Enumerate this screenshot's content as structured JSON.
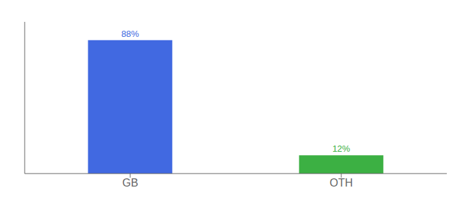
{
  "chart_data": {
    "type": "bar",
    "categories": [
      "GB",
      "OTH"
    ],
    "values": [
      88,
      12
    ],
    "value_labels": [
      "88%",
      "12%"
    ],
    "colors": [
      "#4169e1",
      "#3cb043"
    ],
    "ylim": [
      0,
      100
    ],
    "grid": false,
    "data_labels": true,
    "tick_labels": "x"
  }
}
